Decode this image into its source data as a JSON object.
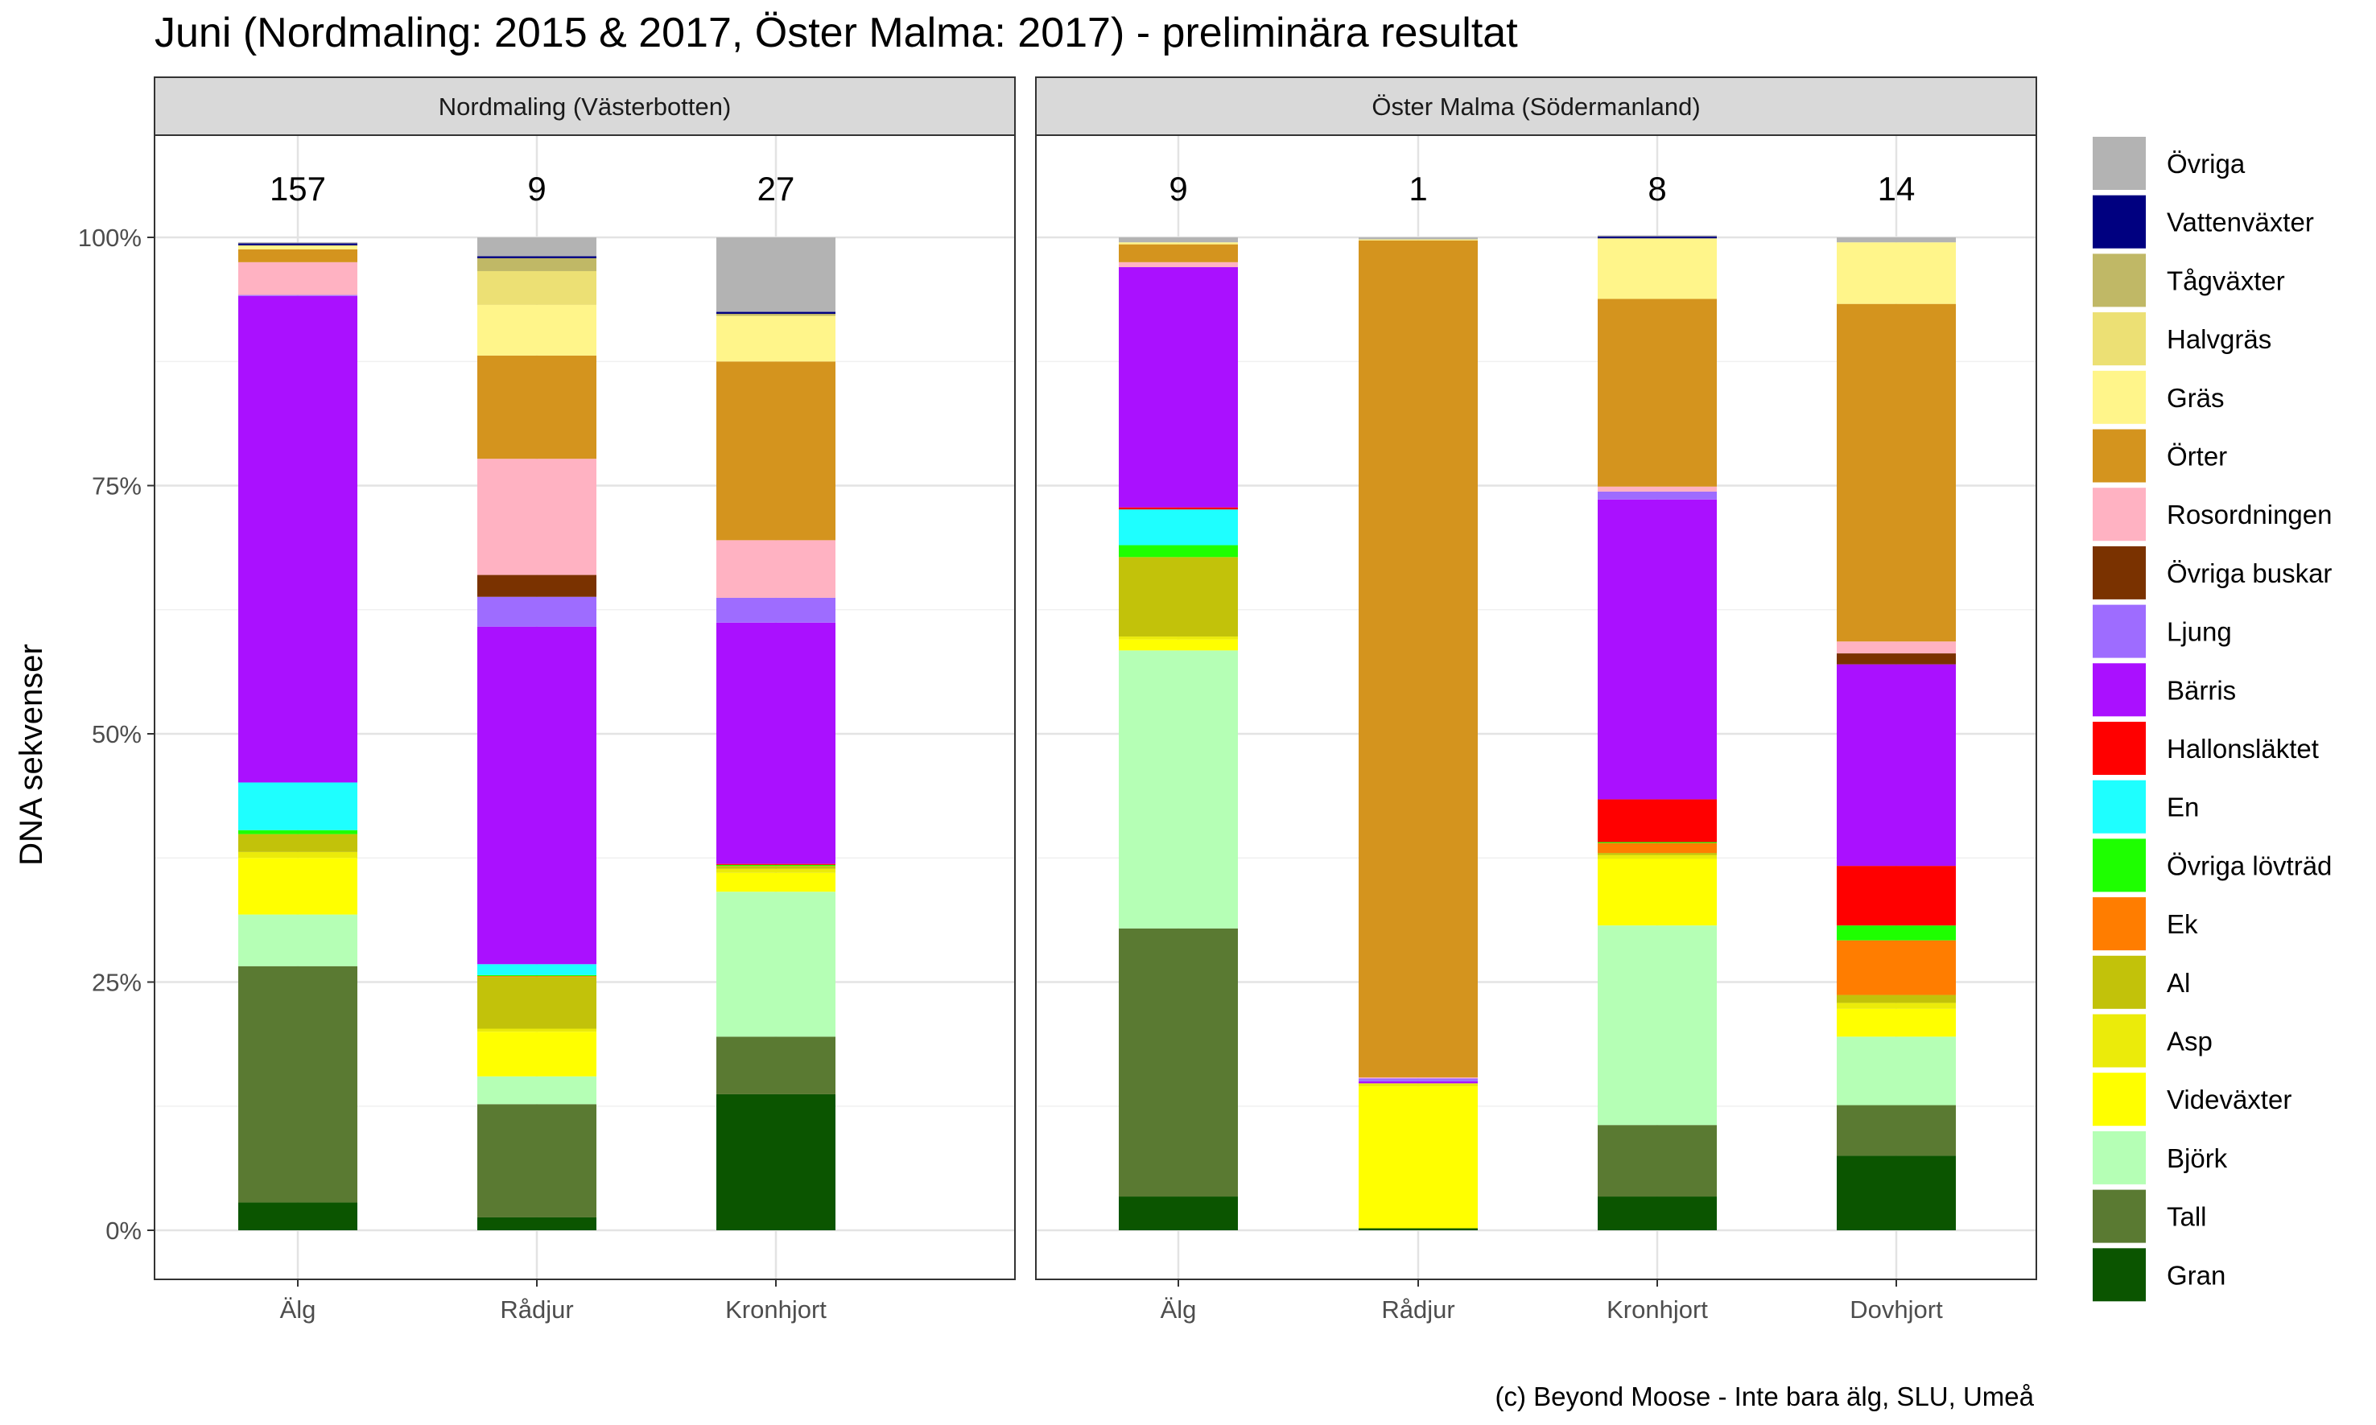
{
  "chart_data": {
    "type": "bar",
    "stacked": true,
    "normalized": true,
    "title": "Juni (Nordmaling: 2015 & 2017, Öster Malma: 2017) - preliminära resultat",
    "ylabel": "DNA sekvenser",
    "ylim": [
      0,
      1
    ],
    "yticks": [
      "0%",
      "25%",
      "50%",
      "75%",
      "100%"
    ],
    "grid": true,
    "legend_position": "right",
    "caption": "(c) Beyond Moose - Inte bara älg, SLU, Umeå",
    "stack_order": [
      "Gran",
      "Tall",
      "Björk",
      "Videväxter",
      "Asp",
      "Al",
      "Ek",
      "Övriga lövträd",
      "En",
      "Hallonsläktet",
      "Bärris",
      "Ljung",
      "Övriga buskar",
      "Rosordningen",
      "Örter",
      "Gräs",
      "Halvgräs",
      "Tågväxter",
      "Vattenväxter",
      "Övriga"
    ],
    "legend": [
      {
        "label": "Övriga",
        "color": "#b3b3b3"
      },
      {
        "label": "Vattenväxter",
        "color": "#000080"
      },
      {
        "label": "Tågväxter",
        "color": "#c0b866"
      },
      {
        "label": "Halvgräs",
        "color": "#ece074"
      },
      {
        "label": "Gräs",
        "color": "#fff58a"
      },
      {
        "label": "Örter",
        "color": "#d4941e"
      },
      {
        "label": "Rosordningen",
        "color": "#ffb2c2"
      },
      {
        "label": "Övriga buskar",
        "color": "#7a3200"
      },
      {
        "label": "Ljung",
        "color": "#9e6cff"
      },
      {
        "label": "Bärris",
        "color": "#aa10ff"
      },
      {
        "label": "Hallonsläktet",
        "color": "#ff0000"
      },
      {
        "label": "En",
        "color": "#1effff"
      },
      {
        "label": "Övriga lövträd",
        "color": "#1eff00"
      },
      {
        "label": "Ek",
        "color": "#ff7d00"
      },
      {
        "label": "Al",
        "color": "#c2c20a"
      },
      {
        "label": "Asp",
        "color": "#ebeb0a"
      },
      {
        "label": "Videväxter",
        "color": "#ffff00"
      },
      {
        "label": "Björk",
        "color": "#b5ffb5"
      },
      {
        "label": "Tall",
        "color": "#5a7a32"
      },
      {
        "label": "Gran",
        "color": "#0b5500"
      }
    ],
    "panels": [
      {
        "strip": "Nordmaling (Västerbotten)",
        "categories": [
          "Älg",
          "Rådjur",
          "Kronhjort"
        ],
        "counts": [
          "157",
          "9",
          "27"
        ],
        "bars": [
          {
            "Gran": 0.028,
            "Tall": 0.238,
            "Björk": 0.052,
            "Videväxter": 0.057,
            "Asp": 0.006,
            "Al": 0.018,
            "Övriga lövträd": 0.004,
            "En": 0.048,
            "Bärris": 0.49,
            "Ljung": 0.001,
            "Rosordningen": 0.033,
            "Örter": 0.013,
            "Gräs": 0.003,
            "Halvgräs": 0.001,
            "Vattenväxter": 0.002,
            "Övriga": 0.001
          },
          {
            "Gran": 0.013,
            "Tall": 0.114,
            "Björk": 0.028,
            "Videväxter": 0.045,
            "Asp": 0.003,
            "Al": 0.052,
            "Ek": 0.001,
            "Övriga lövträd": 0.001,
            "En": 0.011,
            "Bärris": 0.34,
            "Ljung": 0.03,
            "Övriga buskar": 0.022,
            "Rosordningen": 0.117,
            "Örter": 0.104,
            "Gräs": 0.051,
            "Halvgräs": 0.034,
            "Tågväxter": 0.013,
            "Vattenväxter": 0.002,
            "Övriga": 0.019
          },
          {
            "Gran": 0.137,
            "Tall": 0.058,
            "Björk": 0.146,
            "Videväxter": 0.019,
            "Asp": 0.004,
            "Al": 0.003,
            "Övriga lövträd": 0.001,
            "Hallonsläktet": 0.001,
            "Bärris": 0.243,
            "Ljung": 0.025,
            "Rosordningen": 0.058,
            "Örter": 0.18,
            "Gräs": 0.046,
            "Tågväxter": 0.002,
            "Vattenväxter": 0.002,
            "Övriga": 0.075
          }
        ]
      },
      {
        "strip": "Öster Malma (Södermanland)",
        "categories": [
          "Älg",
          "Rådjur",
          "Kronhjort",
          "Dovhjort"
        ],
        "counts": [
          "9",
          "1",
          "8",
          "14"
        ],
        "bars": [
          {
            "Gran": 0.034,
            "Tall": 0.27,
            "Björk": 0.28,
            "Videväxter": 0.011,
            "Asp": 0.003,
            "Al": 0.08,
            "Övriga lövträd": 0.012,
            "En": 0.036,
            "Hallonsläktet": 0.002,
            "Bärris": 0.242,
            "Rosordningen": 0.005,
            "Örter": 0.018,
            "Gräs": 0.002,
            "Övriga": 0.005
          },
          {
            "Gran": 0.002,
            "Videväxter": 0.143,
            "Asp": 0.003,
            "Bärris": 0.002,
            "Ljung": 0.003,
            "Rosordningen": 0.001,
            "Örter": 0.843,
            "Gräs": 0.001,
            "Övriga": 0.002
          },
          {
            "Gran": 0.034,
            "Tall": 0.072,
            "Björk": 0.201,
            "Videväxter": 0.067,
            "Asp": 0.004,
            "Al": 0.002,
            "Ek": 0.01,
            "Övriga lövträd": 0.001,
            "Hallonsläktet": 0.043,
            "Bärris": 0.302,
            "Ljung": 0.008,
            "Rosordningen": 0.005,
            "Örter": 0.189,
            "Gräs": 0.061,
            "Vattenväxter": 0.002,
            "Övriga": 0.001
          },
          {
            "Gran": 0.075,
            "Tall": 0.051,
            "Björk": 0.069,
            "Videväxter": 0.028,
            "Asp": 0.006,
            "Al": 0.008,
            "Ek": 0.055,
            "Övriga lövträd": 0.015,
            "Hallonsläktet": 0.06,
            "Bärris": 0.203,
            "Övriga buskar": 0.011,
            "Rosordningen": 0.012,
            "Örter": 0.34,
            "Gräs": 0.062,
            "Övriga": 0.005
          }
        ]
      }
    ]
  }
}
